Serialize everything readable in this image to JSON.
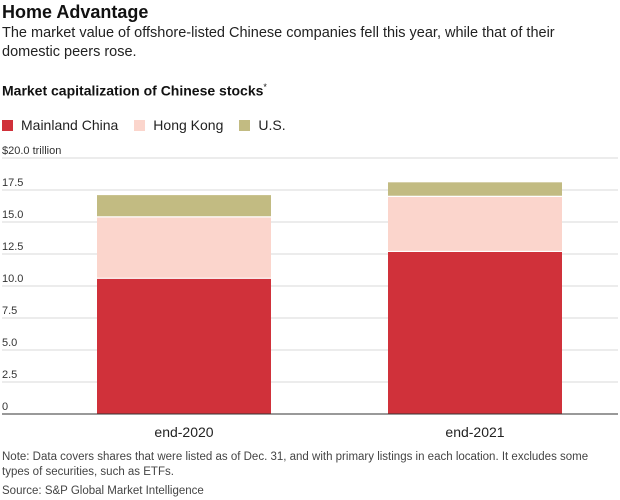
{
  "title": "Home Advantage",
  "subtitle": "The market value of offshore-listed Chinese companies fell this year, while that of their domestic peers rose.",
  "chart_title": "Market capitalization of Chinese stocks",
  "chart_title_mark": "*",
  "note": "Note: Data covers shares that were listed as of Dec. 31, and with primary listings in each location. It excludes some types of securities, such as ETFs.",
  "source": "Source: S&P Global Market Intelligence",
  "colors": {
    "mainland": "#d0313a",
    "hongkong": "#fbd5cc",
    "us": "#c2bb82",
    "grid": "#d9d9d9",
    "axis": "#333333"
  },
  "chart_data": {
    "type": "bar",
    "stacked": true,
    "title": "Market capitalization of Chinese stocks",
    "categories": [
      "end-2020",
      "end-2021"
    ],
    "series": [
      {
        "name": "Mainland China",
        "values": [
          10.6,
          12.7
        ]
      },
      {
        "name": "Hong Kong",
        "values": [
          4.8,
          4.3
        ]
      },
      {
        "name": "U.S.",
        "values": [
          1.7,
          1.1
        ]
      }
    ],
    "y_ticks": [
      "$20.0 trillion",
      "17.5",
      "15.0",
      "12.5",
      "10.0",
      "7.5",
      "5.0",
      "2.5",
      "0"
    ],
    "y_tick_values": [
      20,
      17.5,
      15,
      12.5,
      10,
      7.5,
      5,
      2.5,
      0
    ],
    "ylim": [
      0,
      20
    ],
    "grid": true,
    "legend": "top-left"
  }
}
